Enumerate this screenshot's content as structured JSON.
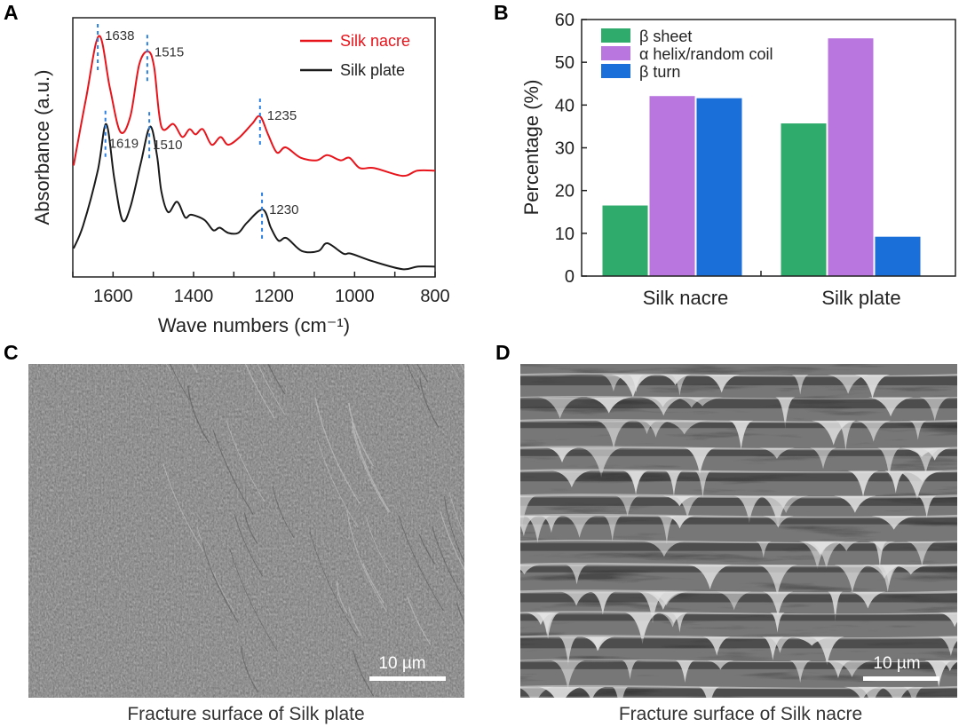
{
  "panel_labels": {
    "a": "A",
    "b": "B",
    "c": "C",
    "d": "D"
  },
  "chart_data": [
    {
      "type": "line",
      "title": "",
      "xlabel": "Wave numbers (cm⁻¹)",
      "ylabel": "Absorbance (a.u.)",
      "xlim": [
        1700,
        800
      ],
      "ylim": [
        0,
        1
      ],
      "xticks": [
        "1600",
        "1400",
        "1200",
        "1000",
        "800"
      ],
      "legend_position": "top-right",
      "series": [
        {
          "name": "Silk nacre",
          "color": "#e8141b",
          "points": [
            [
              1698,
              0.43
            ],
            [
              1667,
              0.69
            ],
            [
              1635,
              0.93
            ],
            [
              1608,
              0.73
            ],
            [
              1582,
              0.56
            ],
            [
              1557,
              0.62
            ],
            [
              1535,
              0.82
            ],
            [
              1513,
              0.87
            ],
            [
              1498,
              0.81
            ],
            [
              1480,
              0.58
            ],
            [
              1450,
              0.59
            ],
            [
              1428,
              0.54
            ],
            [
              1410,
              0.57
            ],
            [
              1395,
              0.55
            ],
            [
              1377,
              0.57
            ],
            [
              1355,
              0.51
            ],
            [
              1333,
              0.54
            ],
            [
              1314,
              0.51
            ],
            [
              1285,
              0.54
            ],
            [
              1255,
              0.59
            ],
            [
              1235,
              0.62
            ],
            [
              1215,
              0.55
            ],
            [
              1193,
              0.48
            ],
            [
              1171,
              0.5
            ],
            [
              1134,
              0.46
            ],
            [
              1094,
              0.45
            ],
            [
              1068,
              0.47
            ],
            [
              1035,
              0.45
            ],
            [
              1013,
              0.46
            ],
            [
              987,
              0.42
            ],
            [
              951,
              0.42
            ],
            [
              881,
              0.39
            ],
            [
              844,
              0.41
            ],
            [
              800,
              0.41
            ]
          ],
          "peaks": [
            "1638",
            "1515",
            "1235"
          ]
        },
        {
          "name": "Silk plate",
          "color": "#1a1a1a",
          "points": [
            [
              1698,
              0.11
            ],
            [
              1674,
              0.2
            ],
            [
              1638,
              0.41
            ],
            [
              1617,
              0.59
            ],
            [
              1597,
              0.38
            ],
            [
              1577,
              0.22
            ],
            [
              1557,
              0.27
            ],
            [
              1531,
              0.44
            ],
            [
              1508,
              0.58
            ],
            [
              1491,
              0.47
            ],
            [
              1480,
              0.33
            ],
            [
              1463,
              0.25
            ],
            [
              1441,
              0.29
            ],
            [
              1421,
              0.23
            ],
            [
              1406,
              0.24
            ],
            [
              1373,
              0.22
            ],
            [
              1351,
              0.18
            ],
            [
              1335,
              0.19
            ],
            [
              1314,
              0.17
            ],
            [
              1289,
              0.17
            ],
            [
              1267,
              0.21
            ],
            [
              1228,
              0.26
            ],
            [
              1208,
              0.19
            ],
            [
              1189,
              0.14
            ],
            [
              1169,
              0.15
            ],
            [
              1131,
              0.1
            ],
            [
              1090,
              0.1
            ],
            [
              1068,
              0.13
            ],
            [
              1028,
              0.09
            ],
            [
              1009,
              0.09
            ],
            [
              954,
              0.06
            ],
            [
              881,
              0.03
            ],
            [
              844,
              0.04
            ],
            [
              800,
              0.04
            ]
          ],
          "peaks": [
            "1619",
            "1510",
            "1230"
          ]
        }
      ],
      "peak_marker_color": "#2a7fe0"
    },
    {
      "type": "bar",
      "title": "",
      "xlabel": "",
      "ylabel": "Percentage (%)",
      "ylim": [
        0,
        60
      ],
      "yticks": [
        "0",
        "10",
        "20",
        "30",
        "40",
        "50",
        "60"
      ],
      "categories": [
        "Silk nacre",
        "Silk plate"
      ],
      "legend_position": "top-left",
      "series": [
        {
          "name": "β sheet",
          "color": "#2fab6b",
          "values": [
            16.5,
            35.7
          ]
        },
        {
          "name": "α helix/random coil",
          "color": "#b876de",
          "values": [
            42.1,
            55.6
          ]
        },
        {
          "name": "β turn",
          "color": "#1b6fd8",
          "values": [
            41.6,
            9.2
          ]
        }
      ]
    }
  ],
  "images": {
    "c": {
      "caption": "Fracture surface of Silk plate",
      "scale_bar": "10 µm"
    },
    "d": {
      "caption": "Fracture surface of Silk nacre",
      "scale_bar": "10 µm"
    }
  }
}
